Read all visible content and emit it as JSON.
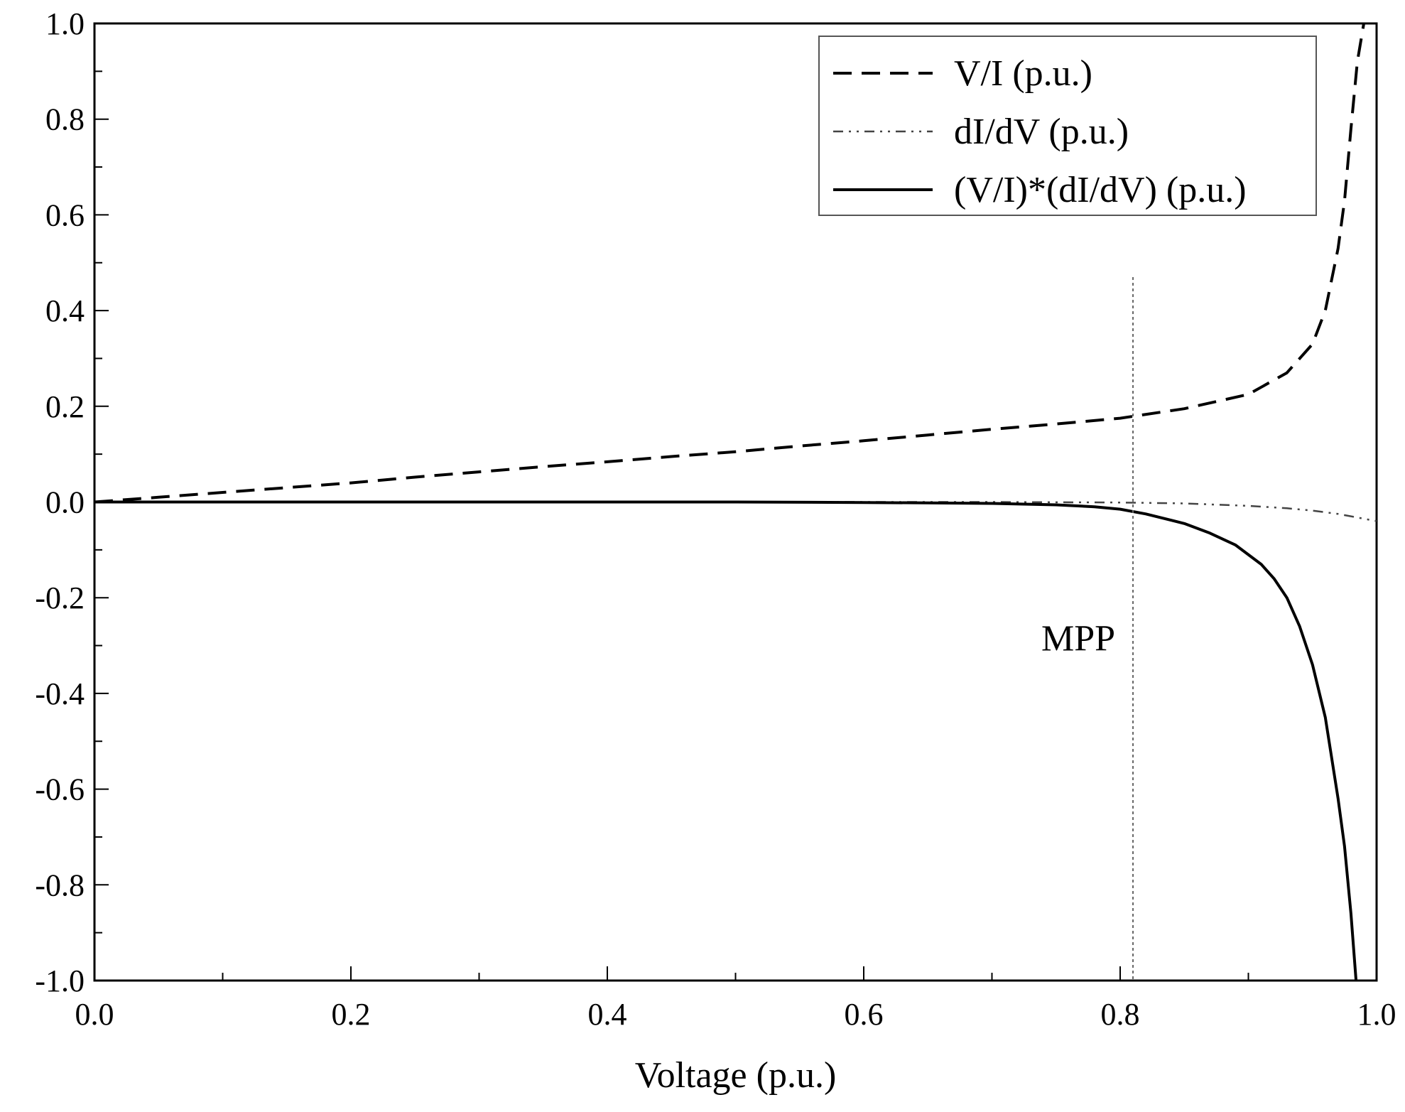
{
  "chart_data": {
    "type": "line",
    "title": "",
    "xlabel": "Voltage (p.u.)",
    "ylabel": "",
    "xlim": [
      0.0,
      1.0
    ],
    "ylim": [
      -1.0,
      1.0
    ],
    "grid": false,
    "legend_position": "top-right",
    "x_ticks": [
      "0.0",
      "0.2",
      "0.4",
      "0.6",
      "0.8",
      "1.0"
    ],
    "y_ticks": [
      "1.0",
      "0.8",
      "0.6",
      "0.4",
      "0.2",
      "0.0",
      "-0.2",
      "-0.4",
      "-0.6",
      "-0.8",
      "-1.0"
    ],
    "mpp": {
      "x": 0.81,
      "y_top": 0.47,
      "label": "MPP"
    },
    "series": [
      {
        "name": "V/I (p.u.)",
        "style": "dashed",
        "x": [
          0.0,
          0.05,
          0.1,
          0.15,
          0.2,
          0.25,
          0.3,
          0.35,
          0.4,
          0.45,
          0.5,
          0.55,
          0.6,
          0.65,
          0.7,
          0.75,
          0.8,
          0.85,
          0.9,
          0.93,
          0.95,
          0.96,
          0.97,
          0.975,
          0.98,
          0.985,
          0.99
        ],
        "y": [
          0.0,
          0.01,
          0.02,
          0.03,
          0.04,
          0.052,
          0.063,
          0.074,
          0.084,
          0.095,
          0.105,
          0.117,
          0.128,
          0.14,
          0.152,
          0.163,
          0.175,
          0.195,
          0.225,
          0.27,
          0.33,
          0.4,
          0.53,
          0.63,
          0.78,
          0.92,
          1.0
        ]
      },
      {
        "name": "dI/dV (p.u.)",
        "style": "dash-dot-dot",
        "x": [
          0.0,
          0.1,
          0.2,
          0.3,
          0.4,
          0.5,
          0.6,
          0.7,
          0.8,
          0.85,
          0.9,
          0.93,
          0.95,
          0.97,
          1.0
        ],
        "y": [
          0.0,
          0.0,
          0.0,
          0.0,
          0.0,
          0.0,
          0.0,
          0.0,
          -0.001,
          -0.003,
          -0.008,
          -0.013,
          -0.018,
          -0.025,
          -0.04
        ]
      },
      {
        "name": "(V/I)*(dI/dV) (p.u.)",
        "style": "solid",
        "x": [
          0.0,
          0.1,
          0.2,
          0.3,
          0.4,
          0.5,
          0.6,
          0.65,
          0.7,
          0.75,
          0.78,
          0.8,
          0.82,
          0.85,
          0.87,
          0.89,
          0.9,
          0.91,
          0.92,
          0.93,
          0.94,
          0.95,
          0.96,
          0.97,
          0.975,
          0.98,
          0.984
        ],
        "y": [
          0.0,
          0.0,
          0.0,
          0.0,
          0.0,
          0.0,
          -0.001,
          -0.002,
          -0.003,
          -0.006,
          -0.01,
          -0.015,
          -0.025,
          -0.045,
          -0.065,
          -0.09,
          -0.11,
          -0.13,
          -0.16,
          -0.2,
          -0.26,
          -0.34,
          -0.45,
          -0.62,
          -0.72,
          -0.86,
          -1.0
        ]
      }
    ]
  }
}
